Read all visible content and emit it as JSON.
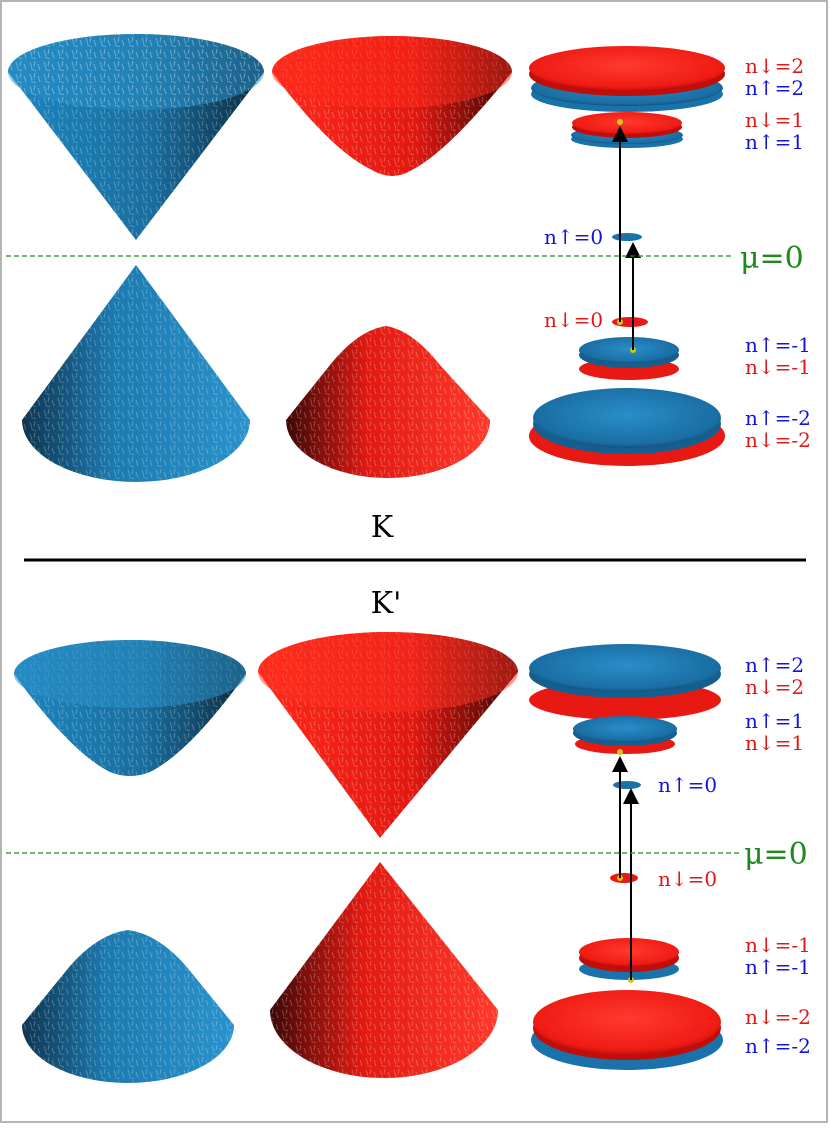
{
  "colors": {
    "spin_up": "#1a7fb8",
    "spin_up_text": "#1414d8",
    "spin_down": "#ee1c1c",
    "spin_down_text": "#e01818",
    "chemical_potential": "#1e8a1e",
    "frame": "#b4b4b4",
    "divider": "#000000"
  },
  "valleys": {
    "top_label": "K",
    "bottom_label": "K'"
  },
  "chemical_potential_label": "μ=0",
  "panel_K": {
    "level_labels_right": [
      "n↓=2",
      "n↑=2",
      "n↓=1",
      "n↑=1",
      "n↑=-1",
      "n↓=-1",
      "n↑=-2",
      "n↓=-2"
    ],
    "zero_mode_labels": [
      "n↑=0",
      "n↓=0"
    ]
  },
  "panel_Kprime": {
    "level_labels_right": [
      "n↑=2",
      "n↓=2",
      "n↑=1",
      "n↓=1",
      "n↓=-1",
      "n↑=-1",
      "n↓=-2",
      "n↑=-2"
    ],
    "zero_mode_labels": [
      "n↑=0",
      "n↓=0"
    ]
  },
  "cone_icons": [
    "spin-up-dirac-cone-icon",
    "spin-down-massive-cone-icon"
  ],
  "arrow_icon": "transition-arrow-icon"
}
